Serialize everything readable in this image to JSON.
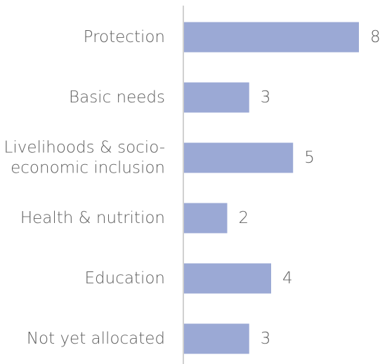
{
  "chart_data": {
    "type": "bar",
    "orientation": "horizontal",
    "categories": [
      "Protection",
      "Basic needs",
      "Livelihoods & socio-economic inclusion",
      "Health & nutrition",
      "Education",
      "Not yet allocated"
    ],
    "category_lines": [
      [
        "Protection"
      ],
      [
        "Basic needs"
      ],
      [
        "Livelihoods & socio-",
        "economic inclusion"
      ],
      [
        "Health & nutrition"
      ],
      [
        "Education"
      ],
      [
        "Not yet allocated"
      ]
    ],
    "values": [
      8,
      3,
      5,
      2,
      4,
      3
    ],
    "value_labels": [
      "8",
      "3",
      "5",
      "2",
      "4",
      "3"
    ],
    "xlim": [
      0,
      8
    ],
    "grid": false,
    "legend": "none",
    "bar_color": "#9ba9d5",
    "axis_color": "#d0d0d0",
    "text_color": "#5f5f5f"
  }
}
